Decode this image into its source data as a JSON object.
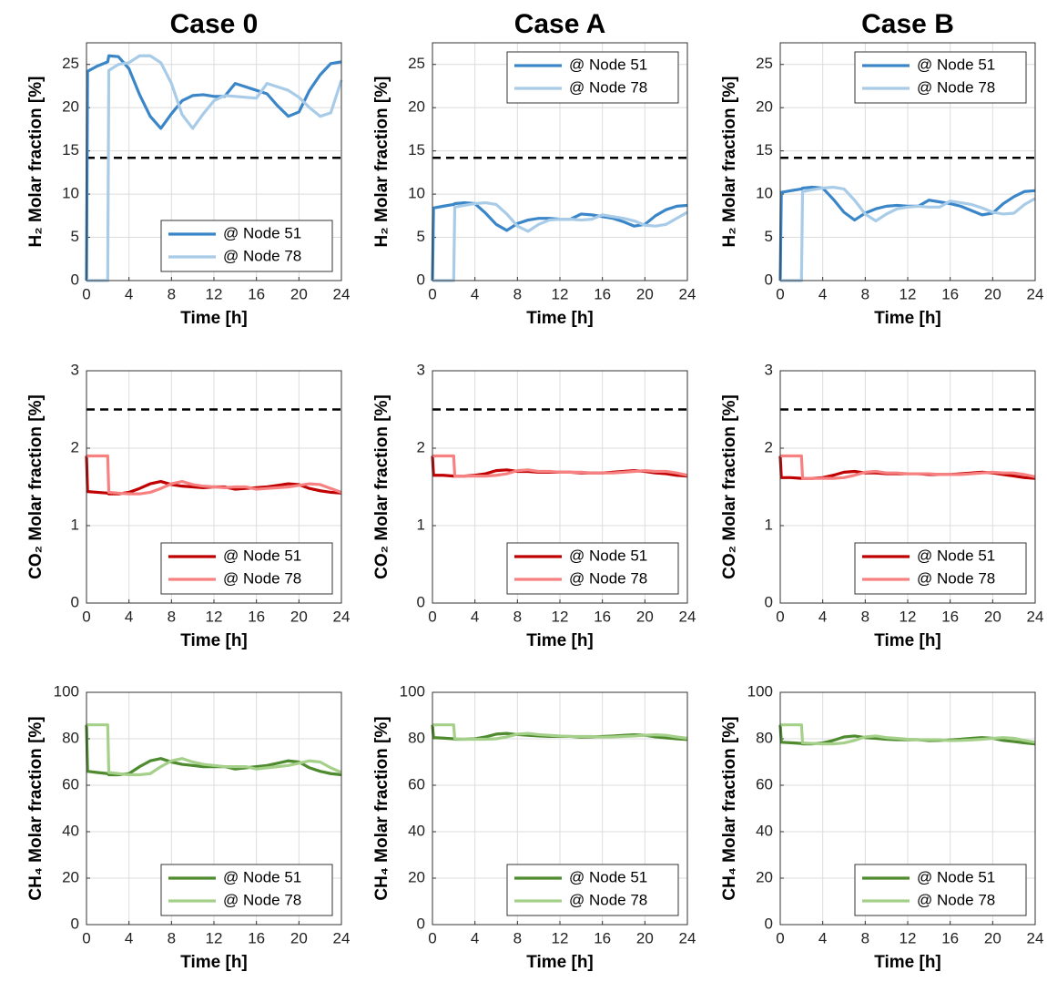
{
  "chart_data": [
    {
      "type": "line",
      "title": "Case 0",
      "xlabel": "Time [h]",
      "ylabel": "H₂ Molar fraction [%]",
      "x": [
        0,
        0.1,
        1,
        2,
        2.1,
        3,
        4,
        5,
        6,
        7,
        8,
        9,
        10,
        11,
        12,
        13,
        14,
        15,
        16,
        17,
        18,
        19,
        20,
        21,
        22,
        23,
        24
      ],
      "series": [
        {
          "name": "@ Node 51",
          "color": "#3a86c8",
          "values": [
            0,
            24.2,
            24.8,
            25.3,
            26,
            25.9,
            24.5,
            21.5,
            19,
            17.6,
            19.3,
            20.8,
            21.4,
            21.5,
            21.3,
            21.3,
            22.8,
            22.4,
            22,
            21.6,
            20.2,
            19,
            19.5,
            22,
            23.8,
            25.1,
            25.3
          ]
        },
        {
          "name": "@ Node 78",
          "color": "#a8cbe8",
          "values": [
            0,
            0,
            0,
            0,
            24.3,
            25,
            25.2,
            26,
            26,
            25.2,
            22.8,
            19.2,
            17.6,
            19.3,
            20.8,
            21.4,
            21.3,
            21.2,
            21.1,
            22.8,
            22.4,
            22,
            21.2,
            20,
            19,
            19.4,
            23.2
          ]
        }
      ],
      "threshold": 14.2,
      "xlim": [
        0,
        24
      ],
      "xticks": [
        0,
        4,
        8,
        12,
        16,
        20,
        24
      ],
      "ylim": [
        0,
        27.5
      ],
      "yticks": [
        0,
        5,
        10,
        15,
        20,
        25
      ],
      "grid": true,
      "legend": "lower right"
    },
    {
      "type": "line",
      "title": "Case A",
      "xlabel": "Time [h]",
      "ylabel": "H₂ Molar fraction [%]",
      "x": [
        0,
        0.1,
        1,
        2,
        2.1,
        3,
        4,
        5,
        6,
        7,
        8,
        9,
        10,
        11,
        12,
        13,
        14,
        15,
        16,
        17,
        18,
        19,
        20,
        21,
        22,
        23,
        24
      ],
      "series": [
        {
          "name": "@ Node 51",
          "color": "#3a86c8",
          "values": [
            0,
            8.4,
            8.6,
            8.8,
            8.9,
            9.0,
            8.9,
            7.8,
            6.5,
            5.8,
            6.6,
            7.0,
            7.2,
            7.2,
            7.1,
            7.1,
            7.7,
            7.6,
            7.4,
            7.2,
            6.8,
            6.3,
            6.5,
            7.5,
            8.2,
            8.6,
            8.7
          ]
        },
        {
          "name": "@ Node 78",
          "color": "#a8cbe8",
          "values": [
            0,
            0,
            0,
            0,
            8.5,
            8.7,
            8.9,
            9.0,
            8.8,
            7.7,
            6.3,
            5.7,
            6.5,
            7.0,
            7.1,
            7.1,
            7.0,
            7.1,
            7.6,
            7.4,
            7.2,
            6.9,
            6.4,
            6.3,
            6.5,
            7.2,
            7.9
          ]
        }
      ],
      "threshold": 14.2,
      "xlim": [
        0,
        24
      ],
      "xticks": [
        0,
        4,
        8,
        12,
        16,
        20,
        24
      ],
      "ylim": [
        0,
        27.5
      ],
      "yticks": [
        0,
        5,
        10,
        15,
        20,
        25
      ],
      "grid": true,
      "legend": "upper right"
    },
    {
      "type": "line",
      "title": "Case B",
      "xlabel": "Time [h]",
      "ylabel": "H₂ Molar fraction [%]",
      "x": [
        0,
        0.1,
        1,
        2,
        2.1,
        3,
        4,
        5,
        6,
        7,
        8,
        9,
        10,
        11,
        12,
        13,
        14,
        15,
        16,
        17,
        18,
        19,
        20,
        21,
        22,
        23,
        24
      ],
      "series": [
        {
          "name": "@ Node 51",
          "color": "#3a86c8",
          "values": [
            0,
            10.2,
            10.4,
            10.6,
            10.7,
            10.8,
            10.7,
            9.4,
            7.9,
            7.0,
            7.8,
            8.3,
            8.6,
            8.7,
            8.6,
            8.6,
            9.3,
            9.1,
            8.9,
            8.6,
            8.1,
            7.6,
            7.8,
            8.9,
            9.7,
            10.3,
            10.4
          ]
        },
        {
          "name": "@ Node 78",
          "color": "#a8cbe8",
          "values": [
            0,
            0,
            0,
            0,
            10.3,
            10.5,
            10.7,
            10.8,
            10.6,
            9.3,
            7.7,
            6.9,
            7.7,
            8.3,
            8.5,
            8.6,
            8.5,
            8.5,
            9.2,
            9.0,
            8.8,
            8.4,
            7.9,
            7.7,
            7.8,
            8.8,
            9.5
          ]
        }
      ],
      "threshold": 14.2,
      "xlim": [
        0,
        24
      ],
      "xticks": [
        0,
        4,
        8,
        12,
        16,
        20,
        24
      ],
      "ylim": [
        0,
        27.5
      ],
      "yticks": [
        0,
        5,
        10,
        15,
        20,
        25
      ],
      "grid": true,
      "legend": "upper right"
    },
    {
      "type": "line",
      "xlabel": "Time [h]",
      "ylabel": "CO₂ Molar fraction [%]",
      "x": [
        0,
        0.1,
        1,
        2,
        2.1,
        3,
        4,
        5,
        6,
        7,
        8,
        9,
        10,
        11,
        12,
        13,
        14,
        15,
        16,
        17,
        18,
        19,
        20,
        21,
        22,
        23,
        24
      ],
      "series": [
        {
          "name": "@ Node 51",
          "color": "#c00000",
          "values": [
            1.9,
            1.44,
            1.43,
            1.42,
            1.41,
            1.41,
            1.43,
            1.48,
            1.54,
            1.57,
            1.53,
            1.51,
            1.5,
            1.49,
            1.5,
            1.5,
            1.47,
            1.48,
            1.49,
            1.5,
            1.52,
            1.54,
            1.53,
            1.48,
            1.45,
            1.43,
            1.42
          ]
        },
        {
          "name": "@ Node 78",
          "color": "#f78080",
          "values": [
            1.9,
            1.9,
            1.9,
            1.9,
            1.43,
            1.42,
            1.41,
            1.41,
            1.43,
            1.48,
            1.54,
            1.57,
            1.53,
            1.51,
            1.5,
            1.49,
            1.5,
            1.5,
            1.47,
            1.48,
            1.49,
            1.5,
            1.52,
            1.54,
            1.53,
            1.48,
            1.43
          ]
        }
      ],
      "threshold": 2.5,
      "xlim": [
        0,
        24
      ],
      "xticks": [
        0,
        4,
        8,
        12,
        16,
        20,
        24
      ],
      "ylim": [
        0,
        3
      ],
      "yticks": [
        0,
        1,
        2,
        3
      ],
      "grid": true,
      "legend": "lower right"
    },
    {
      "type": "line",
      "xlabel": "Time [h]",
      "ylabel": "CO₂ Molar fraction [%]",
      "x": [
        0,
        0.1,
        1,
        2,
        2.1,
        3,
        4,
        5,
        6,
        7,
        8,
        9,
        10,
        11,
        12,
        13,
        14,
        15,
        16,
        17,
        18,
        19,
        20,
        21,
        22,
        23,
        24
      ],
      "series": [
        {
          "name": "@ Node 51",
          "color": "#c00000",
          "values": [
            1.9,
            1.65,
            1.65,
            1.64,
            1.64,
            1.64,
            1.65,
            1.67,
            1.71,
            1.72,
            1.7,
            1.7,
            1.69,
            1.69,
            1.69,
            1.69,
            1.68,
            1.68,
            1.68,
            1.69,
            1.7,
            1.71,
            1.7,
            1.68,
            1.67,
            1.65,
            1.64
          ]
        },
        {
          "name": "@ Node 78",
          "color": "#f78080",
          "values": [
            1.9,
            1.9,
            1.9,
            1.9,
            1.64,
            1.64,
            1.64,
            1.64,
            1.65,
            1.67,
            1.71,
            1.72,
            1.7,
            1.7,
            1.69,
            1.69,
            1.69,
            1.68,
            1.68,
            1.68,
            1.69,
            1.7,
            1.71,
            1.7,
            1.7,
            1.68,
            1.65
          ]
        }
      ],
      "threshold": 2.5,
      "xlim": [
        0,
        24
      ],
      "xticks": [
        0,
        4,
        8,
        12,
        16,
        20,
        24
      ],
      "ylim": [
        0,
        3
      ],
      "yticks": [
        0,
        1,
        2,
        3
      ],
      "grid": true,
      "legend": "lower right"
    },
    {
      "type": "line",
      "xlabel": "Time [h]",
      "ylabel": "CO₂ Molar fraction [%]",
      "x": [
        0,
        0.1,
        1,
        2,
        2.1,
        3,
        4,
        5,
        6,
        7,
        8,
        9,
        10,
        11,
        12,
        13,
        14,
        15,
        16,
        17,
        18,
        19,
        20,
        21,
        22,
        23,
        24
      ],
      "series": [
        {
          "name": "@ Node 51",
          "color": "#c00000",
          "values": [
            1.9,
            1.62,
            1.62,
            1.61,
            1.61,
            1.61,
            1.62,
            1.65,
            1.69,
            1.7,
            1.68,
            1.68,
            1.67,
            1.67,
            1.67,
            1.67,
            1.66,
            1.66,
            1.66,
            1.67,
            1.68,
            1.69,
            1.68,
            1.66,
            1.64,
            1.62,
            1.61
          ]
        },
        {
          "name": "@ Node 78",
          "color": "#f78080",
          "values": [
            1.9,
            1.9,
            1.9,
            1.9,
            1.61,
            1.61,
            1.61,
            1.61,
            1.62,
            1.65,
            1.69,
            1.7,
            1.68,
            1.68,
            1.67,
            1.67,
            1.67,
            1.66,
            1.66,
            1.66,
            1.67,
            1.68,
            1.69,
            1.68,
            1.68,
            1.66,
            1.63
          ]
        }
      ],
      "threshold": 2.5,
      "xlim": [
        0,
        24
      ],
      "xticks": [
        0,
        4,
        8,
        12,
        16,
        20,
        24
      ],
      "ylim": [
        0,
        3
      ],
      "yticks": [
        0,
        1,
        2,
        3
      ],
      "grid": true,
      "legend": "lower right"
    },
    {
      "type": "line",
      "xlabel": "Time [h]",
      "ylabel": "CH₄ Molar fraction [%]",
      "x": [
        0,
        0.1,
        1,
        2,
        2.1,
        3,
        4,
        5,
        6,
        7,
        8,
        9,
        10,
        11,
        12,
        13,
        14,
        15,
        16,
        17,
        18,
        19,
        20,
        21,
        22,
        23,
        24
      ],
      "series": [
        {
          "name": "@ Node 51",
          "color": "#4e8a2e",
          "values": [
            86,
            66,
            65.5,
            65,
            64.5,
            64.5,
            65,
            68,
            70.5,
            71.5,
            70,
            69,
            68.5,
            68,
            68,
            68,
            67,
            67.5,
            68,
            68.5,
            69.5,
            70.5,
            70,
            67.5,
            66,
            65,
            64.5
          ]
        },
        {
          "name": "@ Node 78",
          "color": "#a5d08a",
          "values": [
            86,
            86,
            86,
            86,
            65.5,
            65,
            64.5,
            64.5,
            65,
            68,
            70.5,
            71.5,
            70,
            69,
            68.5,
            68,
            68,
            68,
            67,
            67.5,
            68,
            68.5,
            69.5,
            70.5,
            70,
            67.5,
            65.5
          ]
        }
      ],
      "xlim": [
        0,
        24
      ],
      "xticks": [
        0,
        4,
        8,
        12,
        16,
        20,
        24
      ],
      "ylim": [
        0,
        100
      ],
      "yticks": [
        0,
        20,
        40,
        60,
        80,
        100
      ],
      "grid": true,
      "legend": "lower right"
    },
    {
      "type": "line",
      "xlabel": "Time [h]",
      "ylabel": "CH₄ Molar fraction [%]",
      "x": [
        0,
        0.1,
        1,
        2,
        2.1,
        3,
        4,
        5,
        6,
        7,
        8,
        9,
        10,
        11,
        12,
        13,
        14,
        15,
        16,
        17,
        18,
        19,
        20,
        21,
        22,
        23,
        24
      ],
      "series": [
        {
          "name": "@ Node 51",
          "color": "#4e8a2e",
          "values": [
            86,
            80.5,
            80.3,
            80,
            79.8,
            79.8,
            80,
            80.8,
            82,
            82.3,
            81.8,
            81.5,
            81.2,
            81,
            81,
            81,
            80.7,
            80.8,
            81,
            81.2,
            81.5,
            81.7,
            81.5,
            80.8,
            80.4,
            80,
            79.7
          ]
        },
        {
          "name": "@ Node 78",
          "color": "#a5d08a",
          "values": [
            86,
            86,
            86,
            86,
            80,
            79.8,
            79.8,
            79.8,
            80,
            80.8,
            82,
            82.3,
            81.8,
            81.5,
            81.2,
            81,
            81,
            81,
            80.7,
            80.8,
            81,
            81.2,
            81.5,
            81.7,
            81.5,
            80.8,
            80.2
          ]
        }
      ],
      "xlim": [
        0,
        24
      ],
      "xticks": [
        0,
        4,
        8,
        12,
        16,
        20,
        24
      ],
      "ylim": [
        0,
        100
      ],
      "yticks": [
        0,
        20,
        40,
        60,
        80,
        100
      ],
      "grid": true,
      "legend": "lower right"
    },
    {
      "type": "line",
      "xlabel": "Time [h]",
      "ylabel": "CH₄ Molar fraction [%]",
      "x": [
        0,
        0.1,
        1,
        2,
        2.1,
        3,
        4,
        5,
        6,
        7,
        8,
        9,
        10,
        11,
        12,
        13,
        14,
        15,
        16,
        17,
        18,
        19,
        20,
        21,
        22,
        23,
        24
      ],
      "series": [
        {
          "name": "@ Node 51",
          "color": "#4e8a2e",
          "values": [
            86,
            78.5,
            78.3,
            78,
            77.8,
            77.8,
            78.2,
            79.3,
            80.8,
            81.2,
            80.5,
            80.2,
            79.8,
            79.6,
            79.6,
            79.6,
            79.2,
            79.3,
            79.5,
            79.8,
            80.2,
            80.5,
            80.2,
            79.3,
            78.8,
            78.2,
            77.8
          ]
        },
        {
          "name": "@ Node 78",
          "color": "#a5d08a",
          "values": [
            86,
            86,
            86,
            86,
            78.2,
            78,
            77.8,
            77.8,
            78.2,
            79.3,
            80.8,
            81.2,
            80.5,
            80.2,
            79.8,
            79.6,
            79.6,
            79.6,
            79.2,
            79.3,
            79.5,
            79.8,
            80.2,
            80.5,
            80.2,
            79.3,
            78.5
          ]
        }
      ],
      "xlim": [
        0,
        24
      ],
      "xticks": [
        0,
        4,
        8,
        12,
        16,
        20,
        24
      ],
      "ylim": [
        0,
        100
      ],
      "yticks": [
        0,
        20,
        40,
        60,
        80,
        100
      ],
      "grid": true,
      "legend": "lower right"
    }
  ]
}
